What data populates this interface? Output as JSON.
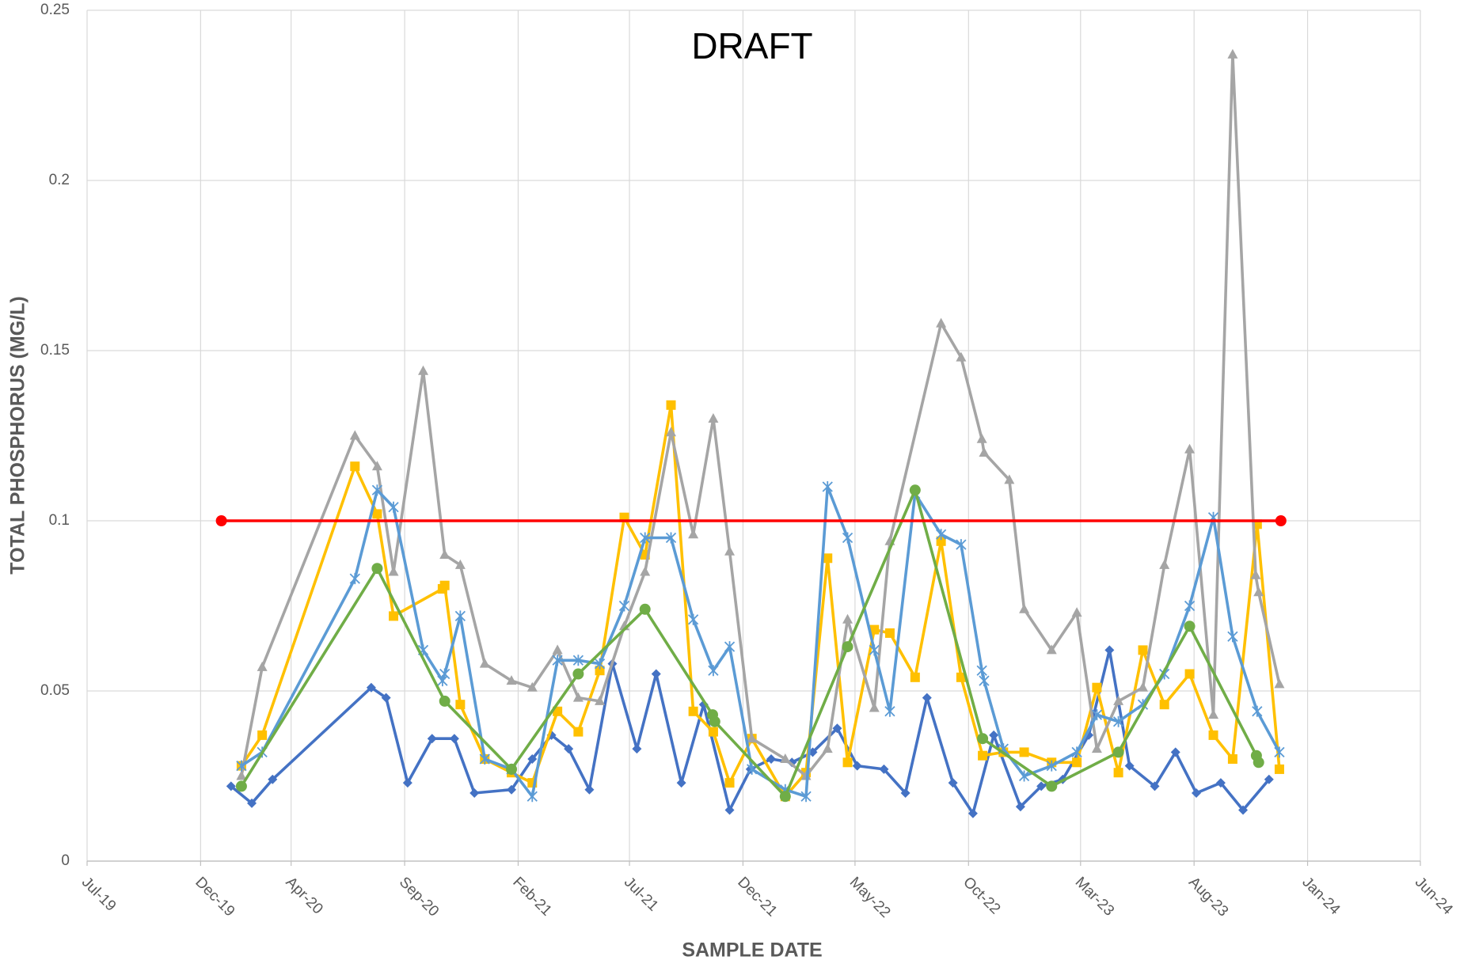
{
  "chart_data": {
    "type": "line",
    "title": "DRAFT",
    "x_label": "SAMPLE DATE",
    "y_label": "TOTAL PHOSPHORUS (MG/L)",
    "xlim": [
      43647,
      45444
    ],
    "xticks": [
      {
        "value": 43647,
        "label": "Jul-19"
      },
      {
        "value": 43800,
        "label": "Dec-19"
      },
      {
        "value": 43922,
        "label": "Apr-20"
      },
      {
        "value": 44075,
        "label": "Sep-20"
      },
      {
        "value": 44228,
        "label": "Feb-21"
      },
      {
        "value": 44378,
        "label": "Jul-21"
      },
      {
        "value": 44531,
        "label": "Dec-21"
      },
      {
        "value": 44682,
        "label": "May-22"
      },
      {
        "value": 44835,
        "label": "Oct-22"
      },
      {
        "value": 44986,
        "label": "Mar-23"
      },
      {
        "value": 45139,
        "label": "Aug-23"
      },
      {
        "value": 45292,
        "label": "Jan-24"
      },
      {
        "value": 45444,
        "label": "Jun-24"
      }
    ],
    "ylim": [
      0,
      0.25
    ],
    "yticks": [
      0,
      0.05,
      0.1,
      0.15,
      0.2,
      0.25
    ],
    "grid": true,
    "series": [
      {
        "color": "#4472c4",
        "marker": "diamond",
        "x": [
          43841,
          43869,
          43897,
          44030,
          44050,
          44079,
          44112,
          44142,
          44169,
          44219,
          44247,
          44273,
          44296,
          44324,
          44355,
          44388,
          44414,
          44448,
          44478,
          44513,
          44541,
          44569,
          44597,
          44625,
          44658,
          44685,
          44721,
          44750,
          44779,
          44814,
          44841,
          44869,
          44905,
          44933,
          44962,
          44997,
          45025,
          45052,
          45086,
          45114,
          45142,
          45175,
          45205,
          45240
        ],
        "values": [
          0.022,
          0.017,
          0.024,
          0.051,
          0.048,
          0.023,
          0.036,
          0.036,
          0.02,
          0.021,
          0.03,
          0.037,
          0.033,
          0.021,
          0.058,
          0.033,
          0.055,
          0.023,
          0.046,
          0.015,
          0.027,
          0.03,
          0.029,
          0.032,
          0.039,
          0.028,
          0.027,
          0.02,
          0.048,
          0.023,
          0.014,
          0.037,
          0.016,
          0.022,
          0.024,
          0.037,
          0.062,
          0.028,
          0.022,
          0.032,
          0.02,
          0.023,
          0.015,
          0.024
        ]
      },
      {
        "color": "#ffc000",
        "marker": "square",
        "x": [
          43855,
          43883,
          44008,
          44038,
          44060,
          44126,
          44129,
          44150,
          44183,
          44219,
          44247,
          44281,
          44309,
          44338,
          44371,
          44399,
          44434,
          44464,
          44491,
          44513,
          44543,
          44588,
          44616,
          44645,
          44672,
          44708,
          44729,
          44763,
          44798,
          44825,
          44854,
          44882,
          44910,
          44947,
          44981,
          45008,
          45037,
          45070,
          45099,
          45133,
          45165,
          45191,
          45224,
          45254
        ],
        "values": [
          0.028,
          0.037,
          0.116,
          0.102,
          0.072,
          0.08,
          0.081,
          0.046,
          0.03,
          0.026,
          0.023,
          0.044,
          0.038,
          0.056,
          0.101,
          0.09,
          0.134,
          0.044,
          0.038,
          0.023,
          0.036,
          0.019,
          0.026,
          0.089,
          0.029,
          0.068,
          0.067,
          0.054,
          0.094,
          0.054,
          0.031,
          0.032,
          0.032,
          0.029,
          0.029,
          0.051,
          0.026,
          0.062,
          0.046,
          0.055,
          0.037,
          0.03,
          0.099,
          0.027
        ]
      },
      {
        "color": "#a5a5a5",
        "marker": "triangle",
        "x": [
          43855,
          43883,
          44008,
          44038,
          44060,
          44100,
          44129,
          44150,
          44183,
          44219,
          44247,
          44281,
          44309,
          44338,
          44371,
          44399,
          44434,
          44464,
          44491,
          44513,
          44543,
          44588,
          44616,
          44645,
          44672,
          44708,
          44729,
          44798,
          44825,
          44853,
          44856,
          44890,
          44910,
          44947,
          44981,
          45008,
          45037,
          45070,
          45099,
          45133,
          45165,
          45191,
          45222,
          45226,
          45254
        ],
        "values": [
          0.025,
          0.057,
          0.125,
          0.116,
          0.085,
          0.144,
          0.09,
          0.087,
          0.058,
          0.053,
          0.051,
          0.062,
          0.048,
          0.047,
          0.069,
          0.085,
          0.126,
          0.096,
          0.13,
          0.091,
          0.036,
          0.03,
          0.025,
          0.033,
          0.071,
          0.045,
          0.094,
          0.158,
          0.148,
          0.124,
          0.12,
          0.112,
          0.074,
          0.062,
          0.073,
          0.033,
          0.047,
          0.051,
          0.087,
          0.121,
          0.043,
          0.237,
          0.084,
          0.079,
          0.052
        ]
      },
      {
        "color": "#5b9bd5",
        "marker": "star",
        "x": [
          43855,
          43883,
          44008,
          44038,
          44060,
          44100,
          44126,
          44129,
          44150,
          44183,
          44219,
          44247,
          44281,
          44309,
          44338,
          44371,
          44399,
          44434,
          44464,
          44491,
          44513,
          44543,
          44588,
          44616,
          44645,
          44672,
          44708,
          44729,
          44763,
          44798,
          44825,
          44853,
          44856,
          44882,
          44910,
          44947,
          44981,
          45008,
          45037,
          45070,
          45099,
          45133,
          45165,
          45191,
          45224,
          45254
        ],
        "values": [
          0.028,
          0.032,
          0.083,
          0.109,
          0.104,
          0.062,
          0.053,
          0.055,
          0.072,
          0.03,
          0.027,
          0.019,
          0.059,
          0.059,
          0.058,
          0.075,
          0.095,
          0.095,
          0.071,
          0.056,
          0.063,
          0.027,
          0.021,
          0.019,
          0.11,
          0.095,
          0.062,
          0.044,
          0.108,
          0.096,
          0.093,
          0.056,
          0.053,
          0.033,
          0.025,
          0.028,
          0.032,
          0.043,
          0.041,
          0.046,
          0.055,
          0.075,
          0.101,
          0.066,
          0.044,
          0.032
        ]
      },
      {
        "color": "#70ad47",
        "marker": "circle",
        "x": [
          43855,
          44038,
          44129,
          44219,
          44309,
          44399,
          44490,
          44493,
          44588,
          44672,
          44763,
          44854,
          44947,
          45037,
          45133,
          45223,
          45226
        ],
        "values": [
          0.022,
          0.086,
          0.047,
          0.027,
          0.055,
          0.074,
          0.043,
          0.041,
          0.019,
          0.063,
          0.109,
          0.036,
          0.022,
          0.032,
          0.069,
          0.031,
          0.029
        ]
      },
      {
        "color": "#ff0000",
        "marker": "circle",
        "x": [
          43828,
          45256
        ],
        "values": [
          0.1,
          0.1
        ]
      }
    ]
  }
}
